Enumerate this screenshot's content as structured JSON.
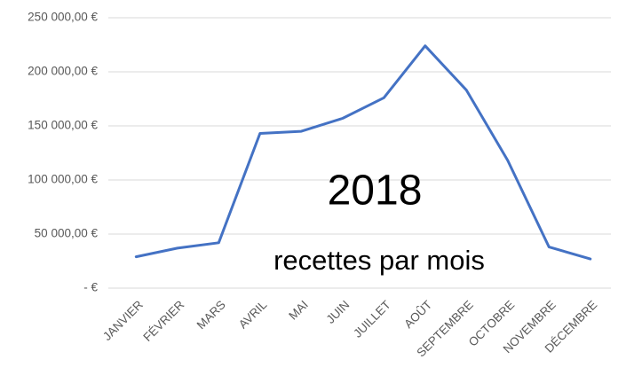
{
  "chart_data": {
    "type": "line",
    "title": "2018",
    "subtitle": "recettes par mois",
    "categories": [
      "JANVIER",
      "FÉVRIER",
      "MARS",
      "AVRIL",
      "MAI",
      "JUIN",
      "JUILLET",
      "AOÛT",
      "SEPTEMBRE",
      "OCTOBRE",
      "NOVEMBRE",
      "DÉCEMBRE"
    ],
    "values": [
      29000,
      37000,
      42000,
      143000,
      145000,
      157000,
      176000,
      224000,
      183000,
      118000,
      38000,
      27000
    ],
    "color": "#4472c4",
    "ylim": [
      0,
      250000
    ],
    "yticks": [
      {
        "value": 0,
        "label": "-   €"
      },
      {
        "value": 50000,
        "label": "50 000,00 €"
      },
      {
        "value": 100000,
        "label": "100 000,00 €"
      },
      {
        "value": 150000,
        "label": "150 000,00 €"
      },
      {
        "value": 200000,
        "label": "200 000,00 €"
      },
      {
        "value": 250000,
        "label": "250 000,00 €"
      }
    ],
    "grid": true
  }
}
